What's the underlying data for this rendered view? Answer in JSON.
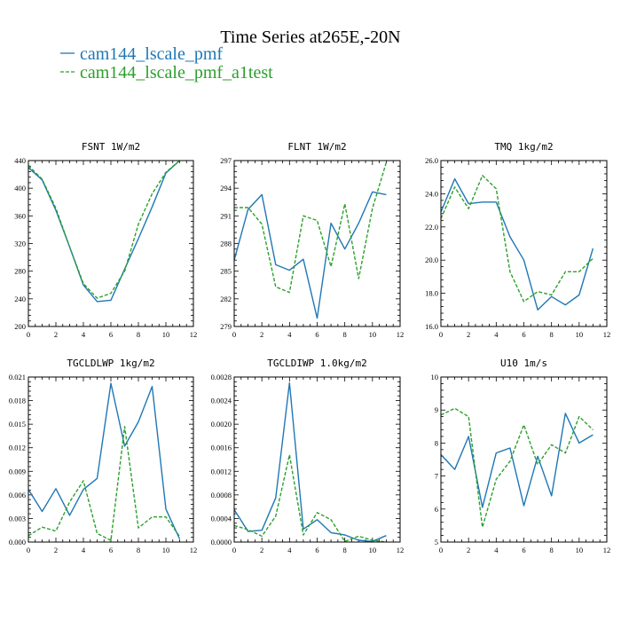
{
  "title": "Time Series at265E,-20N",
  "legend": [
    {
      "label": "cam144_lscale_pmf",
      "color": "#1f77b4",
      "dash": "solid"
    },
    {
      "label": "cam144_lscale_pmf_a1test",
      "color": "#2ca02c",
      "dash": "dashed"
    }
  ],
  "chart_data": [
    {
      "type": "line",
      "title": "FSNT  1W/m2",
      "xlim": [
        0,
        12
      ],
      "ylim": [
        200,
        440
      ],
      "xticks": [
        0,
        2,
        4,
        6,
        8,
        10,
        12
      ],
      "xtick_labels": [
        "0",
        "2",
        "4",
        "6",
        "8",
        "10",
        "12"
      ],
      "yticks": [
        200,
        240,
        280,
        320,
        360,
        400,
        440
      ],
      "ytick_labels": [
        "200",
        "240",
        "280",
        "320",
        "360",
        "400",
        "440"
      ],
      "x": [
        0,
        1,
        2,
        3,
        4,
        5,
        6,
        7,
        8,
        9,
        10,
        11
      ],
      "series": [
        {
          "values": [
            430,
            412,
            368,
            315,
            260,
            236,
            238,
            283,
            327,
            373,
            422,
            440
          ]
        },
        {
          "values": [
            433,
            413,
            371,
            315,
            262,
            241,
            248,
            280,
            348,
            392,
            423,
            440
          ]
        }
      ]
    },
    {
      "type": "line",
      "title": "FLNT  1W/m2",
      "xlim": [
        0,
        12
      ],
      "ylim": [
        279,
        297
      ],
      "xticks": [
        0,
        2,
        4,
        6,
        8,
        10,
        12
      ],
      "xtick_labels": [
        "0",
        "2",
        "4",
        "6",
        "8",
        "10",
        "12"
      ],
      "yticks": [
        279,
        282,
        285,
        288,
        291,
        294,
        297
      ],
      "ytick_labels": [
        "279",
        "282",
        "285",
        "288",
        "291",
        "294",
        "297"
      ],
      "x": [
        0,
        1,
        2,
        3,
        4,
        5,
        6,
        7,
        8,
        9,
        10,
        11
      ],
      "series": [
        {
          "values": [
            286.2,
            291.7,
            293.3,
            285.7,
            285.1,
            286.3,
            279.9,
            290.2,
            287.4,
            290.2,
            293.6,
            293.3
          ]
        },
        {
          "values": [
            291.9,
            291.9,
            290.1,
            283.3,
            282.7,
            291.0,
            290.5,
            285.5,
            292.3,
            284.2,
            291.8,
            296.8
          ]
        }
      ]
    },
    {
      "type": "line",
      "title": "TMQ  1kg/m2",
      "xlim": [
        0,
        12
      ],
      "ylim": [
        16.0,
        26.0
      ],
      "xticks": [
        0,
        2,
        4,
        6,
        8,
        10,
        12
      ],
      "xtick_labels": [
        "0",
        "2",
        "4",
        "6",
        "8",
        "10",
        "12"
      ],
      "yticks": [
        16,
        18,
        20,
        22,
        24,
        26
      ],
      "ytick_labels": [
        "16.0",
        "18.0",
        "20.0",
        "22.0",
        "24.0",
        "26.0"
      ],
      "x": [
        0,
        1,
        2,
        3,
        4,
        5,
        6,
        7,
        8,
        9,
        10,
        11
      ],
      "series": [
        {
          "values": [
            22.9,
            24.9,
            23.4,
            23.5,
            23.5,
            21.4,
            20.0,
            17.0,
            17.8,
            17.3,
            17.9,
            20.7
          ]
        },
        {
          "values": [
            22.5,
            24.4,
            23.1,
            25.1,
            24.3,
            19.3,
            17.5,
            18.1,
            17.9,
            19.3,
            19.3,
            20.1
          ]
        }
      ]
    },
    {
      "type": "line",
      "title": "TGCLDLWP  1kg/m2",
      "xlim": [
        0,
        12
      ],
      "ylim": [
        0,
        0.021
      ],
      "xticks": [
        0,
        2,
        4,
        6,
        8,
        10,
        12
      ],
      "xtick_labels": [
        "0",
        "2",
        "4",
        "6",
        "8",
        "10",
        "12"
      ],
      "yticks": [
        0,
        0.003,
        0.006,
        0.009,
        0.012,
        0.015,
        0.018,
        0.021
      ],
      "ytick_labels": [
        "0.000",
        "0.003",
        "0.006",
        "0.009",
        "0.012",
        "0.015",
        "0.018",
        "0.021"
      ],
      "x": [
        0,
        1,
        2,
        3,
        4,
        5,
        6,
        7,
        8,
        9,
        10,
        11
      ],
      "series": [
        {
          "values": [
            0.0067,
            0.0039,
            0.0068,
            0.0034,
            0.0067,
            0.0081,
            0.0202,
            0.0122,
            0.0153,
            0.0198,
            0.0042,
            0.0004
          ]
        },
        {
          "values": [
            0.0008,
            0.0019,
            0.0014,
            0.0051,
            0.0078,
            0.0011,
            0.0002,
            0.0147,
            0.0018,
            0.0032,
            0.0032,
            0.0007
          ]
        }
      ]
    },
    {
      "type": "line",
      "title": "TGCLDIWP  1.0kg/m2",
      "xlim": [
        0,
        12
      ],
      "ylim": [
        0,
        0.0028
      ],
      "xticks": [
        0,
        2,
        4,
        6,
        8,
        10,
        12
      ],
      "xtick_labels": [
        "0",
        "2",
        "4",
        "6",
        "8",
        "10",
        "12"
      ],
      "yticks": [
        0,
        0.0004,
        0.0008,
        0.0012,
        0.0016,
        0.002,
        0.0024,
        0.0028
      ],
      "ytick_labels": [
        "0.0000",
        "0.0004",
        "0.0008",
        "0.0012",
        "0.0016",
        "0.0020",
        "0.0024",
        "0.0028"
      ],
      "x": [
        0,
        1,
        2,
        3,
        4,
        5,
        6,
        7,
        8,
        9,
        10,
        11
      ],
      "series": [
        {
          "values": [
            0.00055,
            0.00018,
            0.0002,
            0.00075,
            0.0027,
            0.00022,
            0.00038,
            0.00016,
            0.00012,
            3e-05,
            1e-05,
            0.00011
          ]
        },
        {
          "values": [
            0.00028,
            0.00021,
            0.0001,
            0.00044,
            0.00148,
            0.00012,
            0.0005,
            0.00038,
            1e-05,
            0.0001,
            3e-05,
            0.0
          ]
        }
      ]
    },
    {
      "type": "line",
      "title": "U10  1m/s",
      "xlim": [
        0,
        12
      ],
      "ylim": [
        5,
        10
      ],
      "xticks": [
        0,
        2,
        4,
        6,
        8,
        10,
        12
      ],
      "xtick_labels": [
        "0",
        "2",
        "4",
        "6",
        "8",
        "10",
        "12"
      ],
      "yticks": [
        5,
        6,
        7,
        8,
        9,
        10
      ],
      "ytick_labels": [
        "5",
        "6",
        "7",
        "8",
        "9",
        "10"
      ],
      "x": [
        0,
        1,
        2,
        3,
        4,
        5,
        6,
        7,
        8,
        9,
        10,
        11
      ],
      "series": [
        {
          "values": [
            7.65,
            7.2,
            8.2,
            6.05,
            7.7,
            7.85,
            6.1,
            7.6,
            6.4,
            8.9,
            8.0,
            8.25
          ]
        },
        {
          "values": [
            8.85,
            9.05,
            8.8,
            5.45,
            6.9,
            7.45,
            8.55,
            7.35,
            7.95,
            7.7,
            8.8,
            8.4
          ]
        }
      ]
    }
  ]
}
